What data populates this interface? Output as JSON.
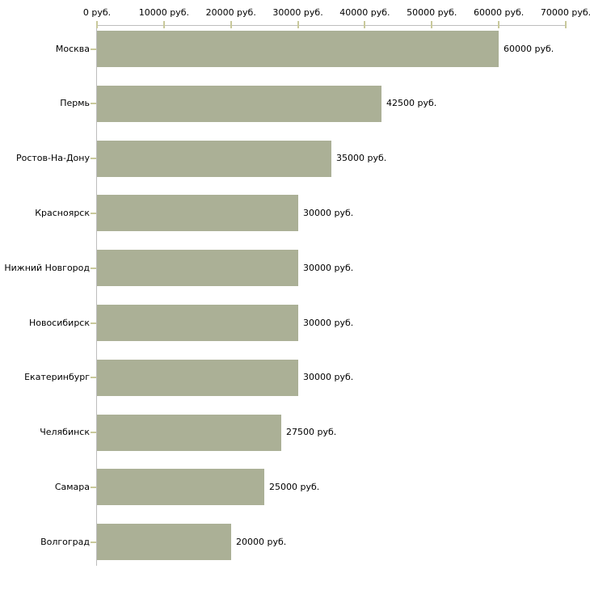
{
  "chart_data": {
    "type": "bar",
    "orientation": "horizontal",
    "unit": "руб.",
    "categories": [
      "Москва",
      "Пермь",
      "Ростов-На-Дону",
      "Красноярск",
      "Нижний Новгород",
      "Новосибирск",
      "Екатеринбург",
      "Челябинск",
      "Самара",
      "Волгоград"
    ],
    "values": [
      60000,
      42500,
      35000,
      30000,
      30000,
      30000,
      30000,
      27500,
      25000,
      20000
    ],
    "value_labels": [
      "60000 руб.",
      "42500 руб.",
      "35000 руб.",
      "30000 руб.",
      "30000 руб.",
      "30000 руб.",
      "30000 руб.",
      "27500 руб.",
      "25000 руб.",
      "20000 руб."
    ],
    "x_axis": {
      "position": "top",
      "min": 0,
      "max": 70000,
      "tick_step": 10000,
      "tick_labels": [
        "0 руб.",
        "10000 руб.",
        "20000 руб.",
        "30000 руб.",
        "40000 руб.",
        "50000 руб.",
        "60000 руб.",
        "70000 руб."
      ]
    },
    "grid": false,
    "legend": "none",
    "colors": {
      "bar": "#abb096",
      "axis_line": "#bdbdbd",
      "tick_mark": "#c9c99b",
      "text": "#000000",
      "background": "#ffffff"
    }
  }
}
